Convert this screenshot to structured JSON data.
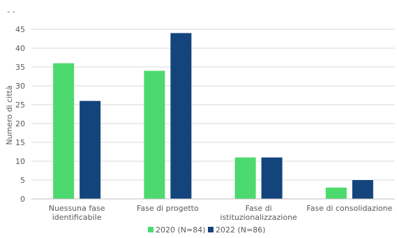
{
  "chart_data": {
    "type": "bar",
    "categories": [
      [
        "Nuessuna fase",
        "identificabile"
      ],
      [
        "Fase di progetto"
      ],
      [
        "Fase di",
        "istituzionalizzazione"
      ],
      [
        "Fase di consolidazione"
      ]
    ],
    "series": [
      {
        "name": "2020 (N=84)",
        "color": "#4cd96e",
        "values": [
          36,
          34,
          11,
          3
        ]
      },
      {
        "name": "2022 (N=86)",
        "color": "#13447c",
        "values": [
          26,
          44,
          11,
          5
        ]
      }
    ],
    "ylabel": "Numero di città",
    "ylim": [
      0,
      50
    ],
    "yticks": [
      0,
      5,
      10,
      15,
      20,
      25,
      30,
      35,
      40,
      45
    ],
    "top_tick_label": "- -",
    "grid": true,
    "legend_position": "bottom"
  }
}
